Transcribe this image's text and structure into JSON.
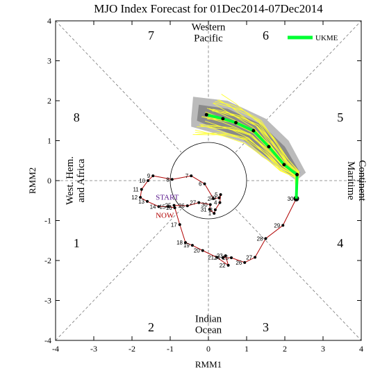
{
  "chart_data": {
    "type": "line",
    "title": "MJO Index Forecast for 01Dec2014-07Dec2014",
    "xlabel": "RMM1",
    "ylabel": "RMM2",
    "xlim": [
      -4,
      4
    ],
    "ylim": [
      -4,
      4
    ],
    "xticks": [
      -4,
      -3,
      -2,
      -1,
      0,
      1,
      2,
      3,
      4
    ],
    "yticks": [
      -4,
      -3,
      -2,
      -1,
      0,
      1,
      2,
      3,
      4
    ],
    "tick_labels": [
      "-4",
      "-3",
      "-2",
      "-1",
      "0",
      "1",
      "2",
      "3",
      "4"
    ],
    "phase_numbers": [
      {
        "label": "1",
        "x": -3.45,
        "y": -1.55
      },
      {
        "label": "2",
        "x": -1.5,
        "y": -3.65
      },
      {
        "label": "3",
        "x": 1.5,
        "y": -3.65
      },
      {
        "label": "4",
        "x": 3.45,
        "y": -1.55
      },
      {
        "label": "5",
        "x": 3.45,
        "y": 1.6
      },
      {
        "label": "6",
        "x": 1.5,
        "y": 3.65
      },
      {
        "label": "7",
        "x": -1.5,
        "y": 3.65
      },
      {
        "label": "8",
        "x": -3.45,
        "y": 1.6
      }
    ],
    "region_labels": {
      "top": [
        "Western",
        "Pacific"
      ],
      "bottom": [
        "Indian",
        "Ocean"
      ],
      "left": [
        "West. Hem.",
        "and Africa"
      ],
      "right": [
        "Maritime",
        "Continent"
      ]
    },
    "legend": {
      "label": "UKME",
      "color": "#00ff33",
      "position": "top-right"
    },
    "observed_line_color": "#b00000",
    "start_label": "START",
    "now_label": "NOW",
    "start_label_color": "#5a1a8c",
    "now_label_color": "#b00000",
    "observed_series": {
      "labels": [
        "29",
        "30",
        "31",
        "1",
        "2",
        "3",
        "4",
        "5",
        "6",
        "7",
        "8",
        "9",
        "10",
        "11",
        "12",
        "13",
        "14",
        "15",
        "16",
        "17",
        "18",
        "19",
        "20",
        "21",
        "22",
        "23",
        "24",
        "25",
        "26",
        "27",
        "28",
        "29",
        "30",
        "31",
        "1",
        "2",
        "3",
        "4",
        "5",
        "6",
        "7",
        "8",
        "9",
        "10",
        "11",
        "12",
        "13",
        "14",
        "15",
        "16",
        "17",
        "18",
        "19",
        "20",
        "21",
        "22",
        "23",
        "24",
        "25",
        "26",
        "27",
        "28",
        "29",
        "30"
      ],
      "x": [
        -0.95,
        -0.88,
        -0.8,
        -0.72,
        -0.62,
        -0.5,
        -0.45,
        -0.2,
        0.05,
        0.18,
        0.22,
        0.28,
        0.3,
        0.25,
        0.08,
        -0.05,
        0.1,
        0.22,
        0.32,
        0.25,
        0.1,
        -0.05,
        -0.3,
        -0.55,
        -0.85,
        -1.05,
        -1.3,
        -1.5,
        -1.75,
        -1.82,
        -1.78,
        -1.6,
        -1.25,
        -1.05,
        -0.9,
        -0.8,
        -0.75,
        -0.7,
        -0.55,
        -0.38,
        -0.15,
        -0.2,
        -0.45,
        -0.9,
        -1.45,
        -1.68,
        -1.8,
        -1.75,
        -1.6,
        -1.35,
        -1.05,
        -0.82,
        -0.72,
        -0.6,
        -0.1,
        0.25,
        0.55,
        0.8,
        1.1,
        1.3,
        1.45,
        1.72,
        2.45,
        2.3
      ],
      "y": [
        -0.7,
        -0.65,
        -0.6,
        -0.58,
        -0.6,
        -0.62,
        -0.55,
        -0.6,
        -0.5,
        -0.45,
        -0.6,
        -0.72,
        -0.52,
        -0.35,
        -0.42,
        -0.28,
        -0.18,
        -0.22,
        -0.2,
        -0.2,
        -0.1,
        -0.3,
        -0.5,
        -0.62,
        -0.8,
        -0.75,
        -0.7,
        -0.6,
        -0.55,
        -0.45,
        -0.3,
        -0.15,
        -0.05,
        -0.05,
        0.05,
        -0.05,
        -0.12,
        -0.18,
        -0.35,
        -0.6,
        -0.65,
        -0.7,
        -0.85,
        -1.1,
        -1.45,
        -1.55,
        -1.75,
        -1.9,
        -1.95,
        -2.0,
        -2.05,
        -2.0,
        -1.9,
        -1.75,
        -1.9,
        -2.05,
        -2.1,
        -1.85,
        -1.55,
        -1.35,
        -1.2,
        -1.05,
        -0.45,
        -0.45
      ]
    },
    "observed_points": [
      {
        "label": "9",
        "x": -1.45,
        "y": 0.12
      },
      {
        "label": "10",
        "x": -1.58,
        "y": 0.0
      },
      {
        "label": "8",
        "x": -0.95,
        "y": 0.03
      },
      {
        "label": "7",
        "x": -0.45,
        "y": 0.12
      },
      {
        "label": "6",
        "x": -0.1,
        "y": -0.08
      },
      {
        "label": "5",
        "x": 0.32,
        "y": -0.35
      },
      {
        "label": "4",
        "x": 0.3,
        "y": -0.55
      },
      {
        "label": "3",
        "x": 0.18,
        "y": -0.73
      },
      {
        "label": "2",
        "x": 0.13,
        "y": -0.45
      },
      {
        "label": "1",
        "x": 0.15,
        "y": -0.82
      },
      {
        "label": "31",
        "x": 0.03,
        "y": -0.72
      },
      {
        "label": "30",
        "x": 0.05,
        "y": -0.6
      },
      {
        "label": "29",
        "x": 0.28,
        "y": -0.43
      },
      {
        "label": "11",
        "x": -1.75,
        "y": -0.22
      },
      {
        "label": "12",
        "x": -1.78,
        "y": -0.42
      },
      {
        "label": "13",
        "x": -1.6,
        "y": -0.52
      },
      {
        "label": "14",
        "x": -1.3,
        "y": -0.65
      },
      {
        "label": "15",
        "x": -1.05,
        "y": -0.65
      },
      {
        "label": "16",
        "x": -0.88,
        "y": -0.68
      },
      {
        "label": "17",
        "x": -0.75,
        "y": -1.1
      },
      {
        "label": "18",
        "x": -0.6,
        "y": -1.55
      },
      {
        "label": "19",
        "x": -0.42,
        "y": -1.62
      },
      {
        "label": "20",
        "x": -0.15,
        "y": -1.75
      },
      {
        "label": "21",
        "x": 0.22,
        "y": -1.92
      },
      {
        "label": "22",
        "x": 0.52,
        "y": -2.12
      },
      {
        "label": "23",
        "x": 0.45,
        "y": -1.88
      },
      {
        "label": "24",
        "x": 0.38,
        "y": -1.93
      },
      {
        "label": "25",
        "x": 0.6,
        "y": -1.93
      },
      {
        "label": "26",
        "x": 0.95,
        "y": -2.05
      },
      {
        "label": "27",
        "x": 1.22,
        "y": -1.92
      },
      {
        "label": "28",
        "x": 1.5,
        "y": -1.45
      },
      {
        "label": "29",
        "x": 1.95,
        "y": -1.12
      },
      {
        "label": "30",
        "x": 2.3,
        "y": -0.45
      },
      {
        "label": "27",
        "x": -0.25,
        "y": -0.55
      },
      {
        "label": "26",
        "x": -0.55,
        "y": -0.63
      },
      {
        "label": "25",
        "x": -0.9,
        "y": -0.62
      }
    ],
    "observed_path": [
      [
        -1.45,
        0.12
      ],
      [
        -1.58,
        0.0
      ],
      [
        -1.75,
        -0.22
      ],
      [
        -1.78,
        -0.42
      ],
      [
        -1.6,
        -0.52
      ],
      [
        -1.3,
        -0.65
      ],
      [
        -1.05,
        -0.65
      ],
      [
        -0.88,
        -0.68
      ],
      [
        -0.75,
        -1.1
      ],
      [
        -0.6,
        -1.55
      ],
      [
        -0.42,
        -1.62
      ],
      [
        -0.15,
        -1.75
      ],
      [
        0.22,
        -1.92
      ],
      [
        0.52,
        -2.12
      ],
      [
        0.45,
        -1.88
      ],
      [
        0.38,
        -1.93
      ],
      [
        0.6,
        -1.93
      ],
      [
        0.95,
        -2.05
      ],
      [
        1.22,
        -1.92
      ],
      [
        1.5,
        -1.45
      ],
      [
        1.95,
        -1.12
      ],
      [
        2.3,
        -0.45
      ]
    ],
    "early_path": [
      [
        -0.9,
        -0.62
      ],
      [
        -0.55,
        -0.63
      ],
      [
        -0.25,
        -0.55
      ],
      [
        0.05,
        -0.6
      ],
      [
        0.03,
        -0.72
      ],
      [
        0.15,
        -0.82
      ],
      [
        0.18,
        -0.73
      ],
      [
        0.3,
        -0.55
      ],
      [
        0.32,
        -0.35
      ],
      [
        0.28,
        -0.43
      ],
      [
        0.13,
        -0.45
      ],
      [
        -0.1,
        -0.08
      ],
      [
        -0.45,
        0.12
      ],
      [
        -0.95,
        0.03
      ],
      [
        -1.45,
        0.12
      ]
    ],
    "ensemble_mean": {
      "x": [
        2.3,
        2.32,
        1.98,
        1.58,
        1.18,
        0.72,
        0.38,
        -0.05
      ],
      "y": [
        -0.45,
        0.15,
        0.4,
        0.85,
        1.25,
        1.45,
        1.55,
        1.65
      ]
    },
    "forecast_points": {
      "x": [
        2.32,
        1.98,
        1.58,
        1.18,
        0.72,
        0.38,
        -0.05
      ],
      "y": [
        0.15,
        0.4,
        0.85,
        1.25,
        1.45,
        1.55,
        1.65
      ]
    }
  }
}
